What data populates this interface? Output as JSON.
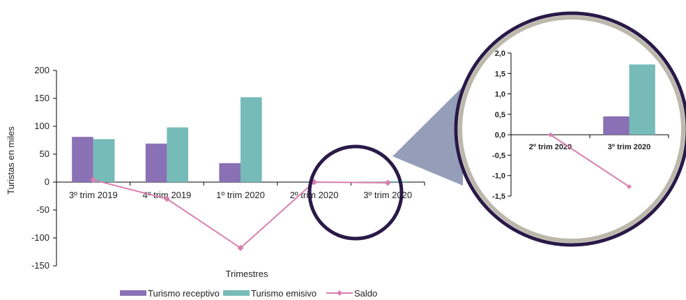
{
  "chart_data": [
    {
      "type": "bar",
      "categories": [
        "3º trim 2019",
        "4º trim 2019",
        "1º trim 2020",
        "2º trim 2020",
        "3º trim 2020"
      ],
      "series": [
        {
          "name": "Turismo receptivo",
          "type": "bar",
          "color": "#8a70b4",
          "values": [
            81,
            69,
            34,
            0,
            0.45
          ]
        },
        {
          "name": "Turismo emisivo",
          "type": "bar",
          "color": "#76bbb7",
          "values": [
            77,
            98,
            152,
            0,
            1.72
          ]
        },
        {
          "name": "Saldo",
          "type": "line",
          "color": "#d77fae",
          "marker": "diamond",
          "values": [
            4,
            -30,
            -118,
            0,
            -1.27
          ]
        }
      ],
      "xlabel": "Trimestres",
      "ylabel": "Turistas en miles",
      "ylim": [
        -150,
        200
      ],
      "yticks": [
        "200",
        "150",
        "100",
        "50",
        "0",
        "-50",
        "-100",
        "-150"
      ],
      "legend_position": "bottom",
      "grid": false
    },
    {
      "type": "bar",
      "categories": [
        "2º trim 2020",
        "3º trim 2020"
      ],
      "series": [
        {
          "name": "Turismo receptivo",
          "type": "bar",
          "color": "#8a70b4",
          "values": [
            0,
            0.45
          ]
        },
        {
          "name": "Turismo emisivo",
          "type": "bar",
          "color": "#76bbb7",
          "values": [
            0,
            1.72
          ]
        },
        {
          "name": "Saldo",
          "type": "line",
          "color": "#d77fae",
          "marker": "diamond",
          "values": [
            0,
            -1.27
          ]
        }
      ],
      "ylim": [
        -1.5,
        2.0
      ],
      "yticks": [
        "2,0",
        "1,5",
        "1,0",
        "0,5",
        "0,0",
        "-0,5",
        "-1,0",
        "-1,5"
      ],
      "grid": false
    }
  ],
  "colors": {
    "receptivo": "#8a70b4",
    "emisivo": "#76bbb7",
    "saldo": "#d77fae",
    "magnifier_ring": "#2a1a47",
    "magnifier_border": "#bdb8ac",
    "connector": "#8a93b1"
  }
}
